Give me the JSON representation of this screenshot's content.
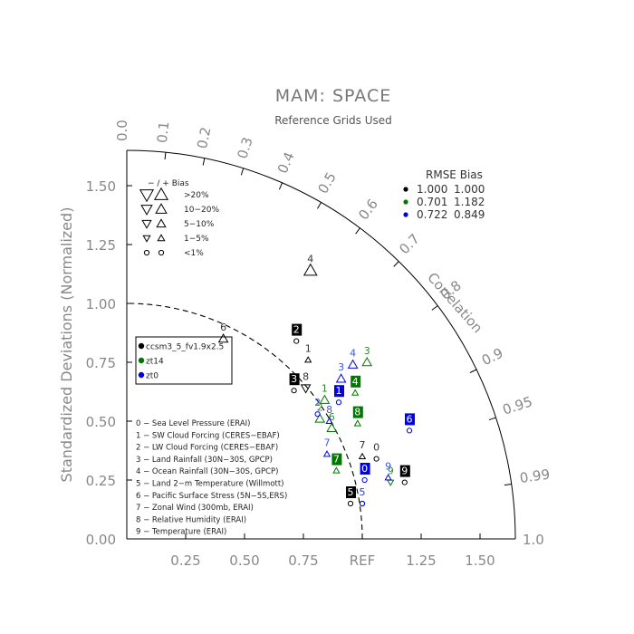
{
  "chart_data": {
    "type": "taylor-diagram",
    "title": "MAM: SPACE",
    "subtitle": "Reference Grids Used",
    "ylabel": "Standardized Deviations (Normalized)",
    "correlation_label": "Correlation",
    "reference_label": "REF",
    "std_ticks_x": [
      "0.25",
      "0.50",
      "0.75",
      "1.25",
      "1.50"
    ],
    "std_ticks_x_values": [
      0.25,
      0.5,
      0.75,
      1.25,
      1.5
    ],
    "std_ticks_y": [
      "0.00",
      "0.25",
      "0.50",
      "0.75",
      "1.00",
      "1.25",
      "1.50"
    ],
    "std_ticks_y_values": [
      0,
      0.25,
      0.5,
      0.75,
      1.0,
      1.25,
      1.5
    ],
    "std_max": 1.65,
    "outer_radius_tick": "1.0",
    "correlation_ticks": [
      {
        "label": "0.0",
        "value": 0.0
      },
      {
        "label": "0.1",
        "value": 0.1
      },
      {
        "label": "0.2",
        "value": 0.2
      },
      {
        "label": "0.3",
        "value": 0.3
      },
      {
        "label": "0.4",
        "value": 0.4
      },
      {
        "label": "0.5",
        "value": 0.5
      },
      {
        "label": "0.6",
        "value": 0.6
      },
      {
        "label": "0.7",
        "value": 0.7
      },
      {
        "label": "0.8",
        "value": 0.8
      },
      {
        "label": "0.9",
        "value": 0.9
      },
      {
        "label": "0.95",
        "value": 0.95
      },
      {
        "label": "0.99",
        "value": 0.99
      }
    ],
    "bias_legend": {
      "header": "−  /  +     Bias",
      "rows": [
        {
          "label": ">20%",
          "size": 1.0
        },
        {
          "label": "10−20%",
          "size": 0.78
        },
        {
          "label": "5−10%",
          "size": 0.6
        },
        {
          "label": "1−5%",
          "size": 0.42
        },
        {
          "label": "<1%",
          "size": 0.0
        }
      ]
    },
    "stats": {
      "header": "RMSE Bias",
      "rows": [
        {
          "color": "#000000",
          "rmse": "1.000",
          "bias": "1.000"
        },
        {
          "color": "#007700",
          "rmse": "0.701",
          "bias": "1.182"
        },
        {
          "color": "#0000ee",
          "rmse": "0.722",
          "bias": "0.849"
        }
      ]
    },
    "cases": [
      {
        "name": "ccsm3_5_fv1.9x2.5",
        "color": "#000000",
        "textColor": "#333333"
      },
      {
        "name": "zt14",
        "color": "#007700",
        "textColor": "#2e8b2e"
      },
      {
        "name": "zt0",
        "color": "#0000ee",
        "textColor": "#3b5bdb"
      }
    ],
    "variables": [
      "0 − Sea Level Pressure (ERAI)",
      "1 − SW Cloud Forcing (CERES−EBAF)",
      "2 − LW Cloud Forcing (CERES−EBAF)",
      "3 − Land Rainfall (30N−30S, GPCP)",
      "4 − Ocean Rainfall (30N−30S, GPCP)",
      "5 − Land 2−m Temperature (Willmott)",
      "6 − Pacific Surface Stress (5N−5S,ERS)",
      "7 − Zonal Wind (300mb, ERAI)",
      "8 − Relative Humidity (ERAI)",
      "9 − Temperature (ERAI)"
    ],
    "points": [
      {
        "case": 0,
        "id": "0",
        "x": 1.06,
        "y": 0.34,
        "marker": "circle",
        "boxed": false
      },
      {
        "case": 0,
        "id": "1",
        "x": 0.77,
        "y": 0.76,
        "marker": "tri-up-s",
        "boxed": false
      },
      {
        "case": 0,
        "id": "2",
        "x": 0.72,
        "y": 0.84,
        "marker": "circle",
        "boxed": true
      },
      {
        "case": 0,
        "id": "3",
        "x": 0.71,
        "y": 0.63,
        "marker": "circle",
        "boxed": true
      },
      {
        "case": 0,
        "id": "4",
        "x": 0.78,
        "y": 1.14,
        "marker": "tri-up-l",
        "boxed": false
      },
      {
        "case": 0,
        "id": "5",
        "x": 0.95,
        "y": 0.15,
        "marker": "circle",
        "boxed": true
      },
      {
        "case": 0,
        "id": "6",
        "x": 0.41,
        "y": 0.85,
        "marker": "tri-up-m",
        "boxed": false
      },
      {
        "case": 0,
        "id": "7",
        "x": 1.0,
        "y": 0.35,
        "marker": "tri-up-s",
        "boxed": false
      },
      {
        "case": 0,
        "id": "8",
        "x": 0.76,
        "y": 0.64,
        "marker": "tri-down-m",
        "boxed": false
      },
      {
        "case": 0,
        "id": "9",
        "x": 1.18,
        "y": 0.24,
        "marker": "circle",
        "boxed": true
      },
      {
        "case": 1,
        "id": "1",
        "x": 0.84,
        "y": 0.59,
        "marker": "tri-up-m",
        "boxed": false
      },
      {
        "case": 1,
        "id": "2",
        "x": 0.82,
        "y": 0.51,
        "marker": "tri-up-m",
        "boxed": false
      },
      {
        "case": 1,
        "id": "3",
        "x": 1.02,
        "y": 0.75,
        "marker": "tri-up-m",
        "boxed": false
      },
      {
        "case": 1,
        "id": "4",
        "x": 0.97,
        "y": 0.62,
        "marker": "tri-up-s",
        "boxed": true
      },
      {
        "case": 1,
        "id": "5",
        "x": 1.0,
        "y": 0.15,
        "marker": "circle",
        "boxed": false
      },
      {
        "case": 1,
        "id": "6",
        "x": 0.87,
        "y": 0.47,
        "marker": "tri-up-m",
        "boxed": false
      },
      {
        "case": 1,
        "id": "7",
        "x": 0.89,
        "y": 0.29,
        "marker": "tri-up-s",
        "boxed": true
      },
      {
        "case": 1,
        "id": "8",
        "x": 0.98,
        "y": 0.49,
        "marker": "tri-up-s",
        "boxed": true
      },
      {
        "case": 1,
        "id": "9",
        "x": 1.12,
        "y": 0.24,
        "marker": "tri-down-s",
        "boxed": false
      },
      {
        "case": 2,
        "id": "0",
        "x": 1.01,
        "y": 0.25,
        "marker": "circle",
        "boxed": true
      },
      {
        "case": 2,
        "id": "1",
        "x": 0.9,
        "y": 0.58,
        "marker": "circle",
        "boxed": true
      },
      {
        "case": 2,
        "id": "2",
        "x": 0.81,
        "y": 0.53,
        "marker": "circle",
        "boxed": false
      },
      {
        "case": 2,
        "id": "3",
        "x": 0.91,
        "y": 0.68,
        "marker": "tri-up-m",
        "boxed": false
      },
      {
        "case": 2,
        "id": "4",
        "x": 0.96,
        "y": 0.74,
        "marker": "tri-up-m",
        "boxed": false
      },
      {
        "case": 2,
        "id": "5",
        "x": 1.0,
        "y": 0.15,
        "marker": "circle",
        "boxed": false
      },
      {
        "case": 2,
        "id": "6",
        "x": 1.2,
        "y": 0.46,
        "marker": "circle",
        "boxed": true
      },
      {
        "case": 2,
        "id": "7",
        "x": 0.85,
        "y": 0.36,
        "marker": "tri-up-s",
        "boxed": false
      },
      {
        "case": 2,
        "id": "8",
        "x": 0.86,
        "y": 0.5,
        "marker": "tri-up-s",
        "boxed": false
      },
      {
        "case": 2,
        "id": "9",
        "x": 1.11,
        "y": 0.26,
        "marker": "tri-up-s",
        "boxed": false
      }
    ]
  }
}
